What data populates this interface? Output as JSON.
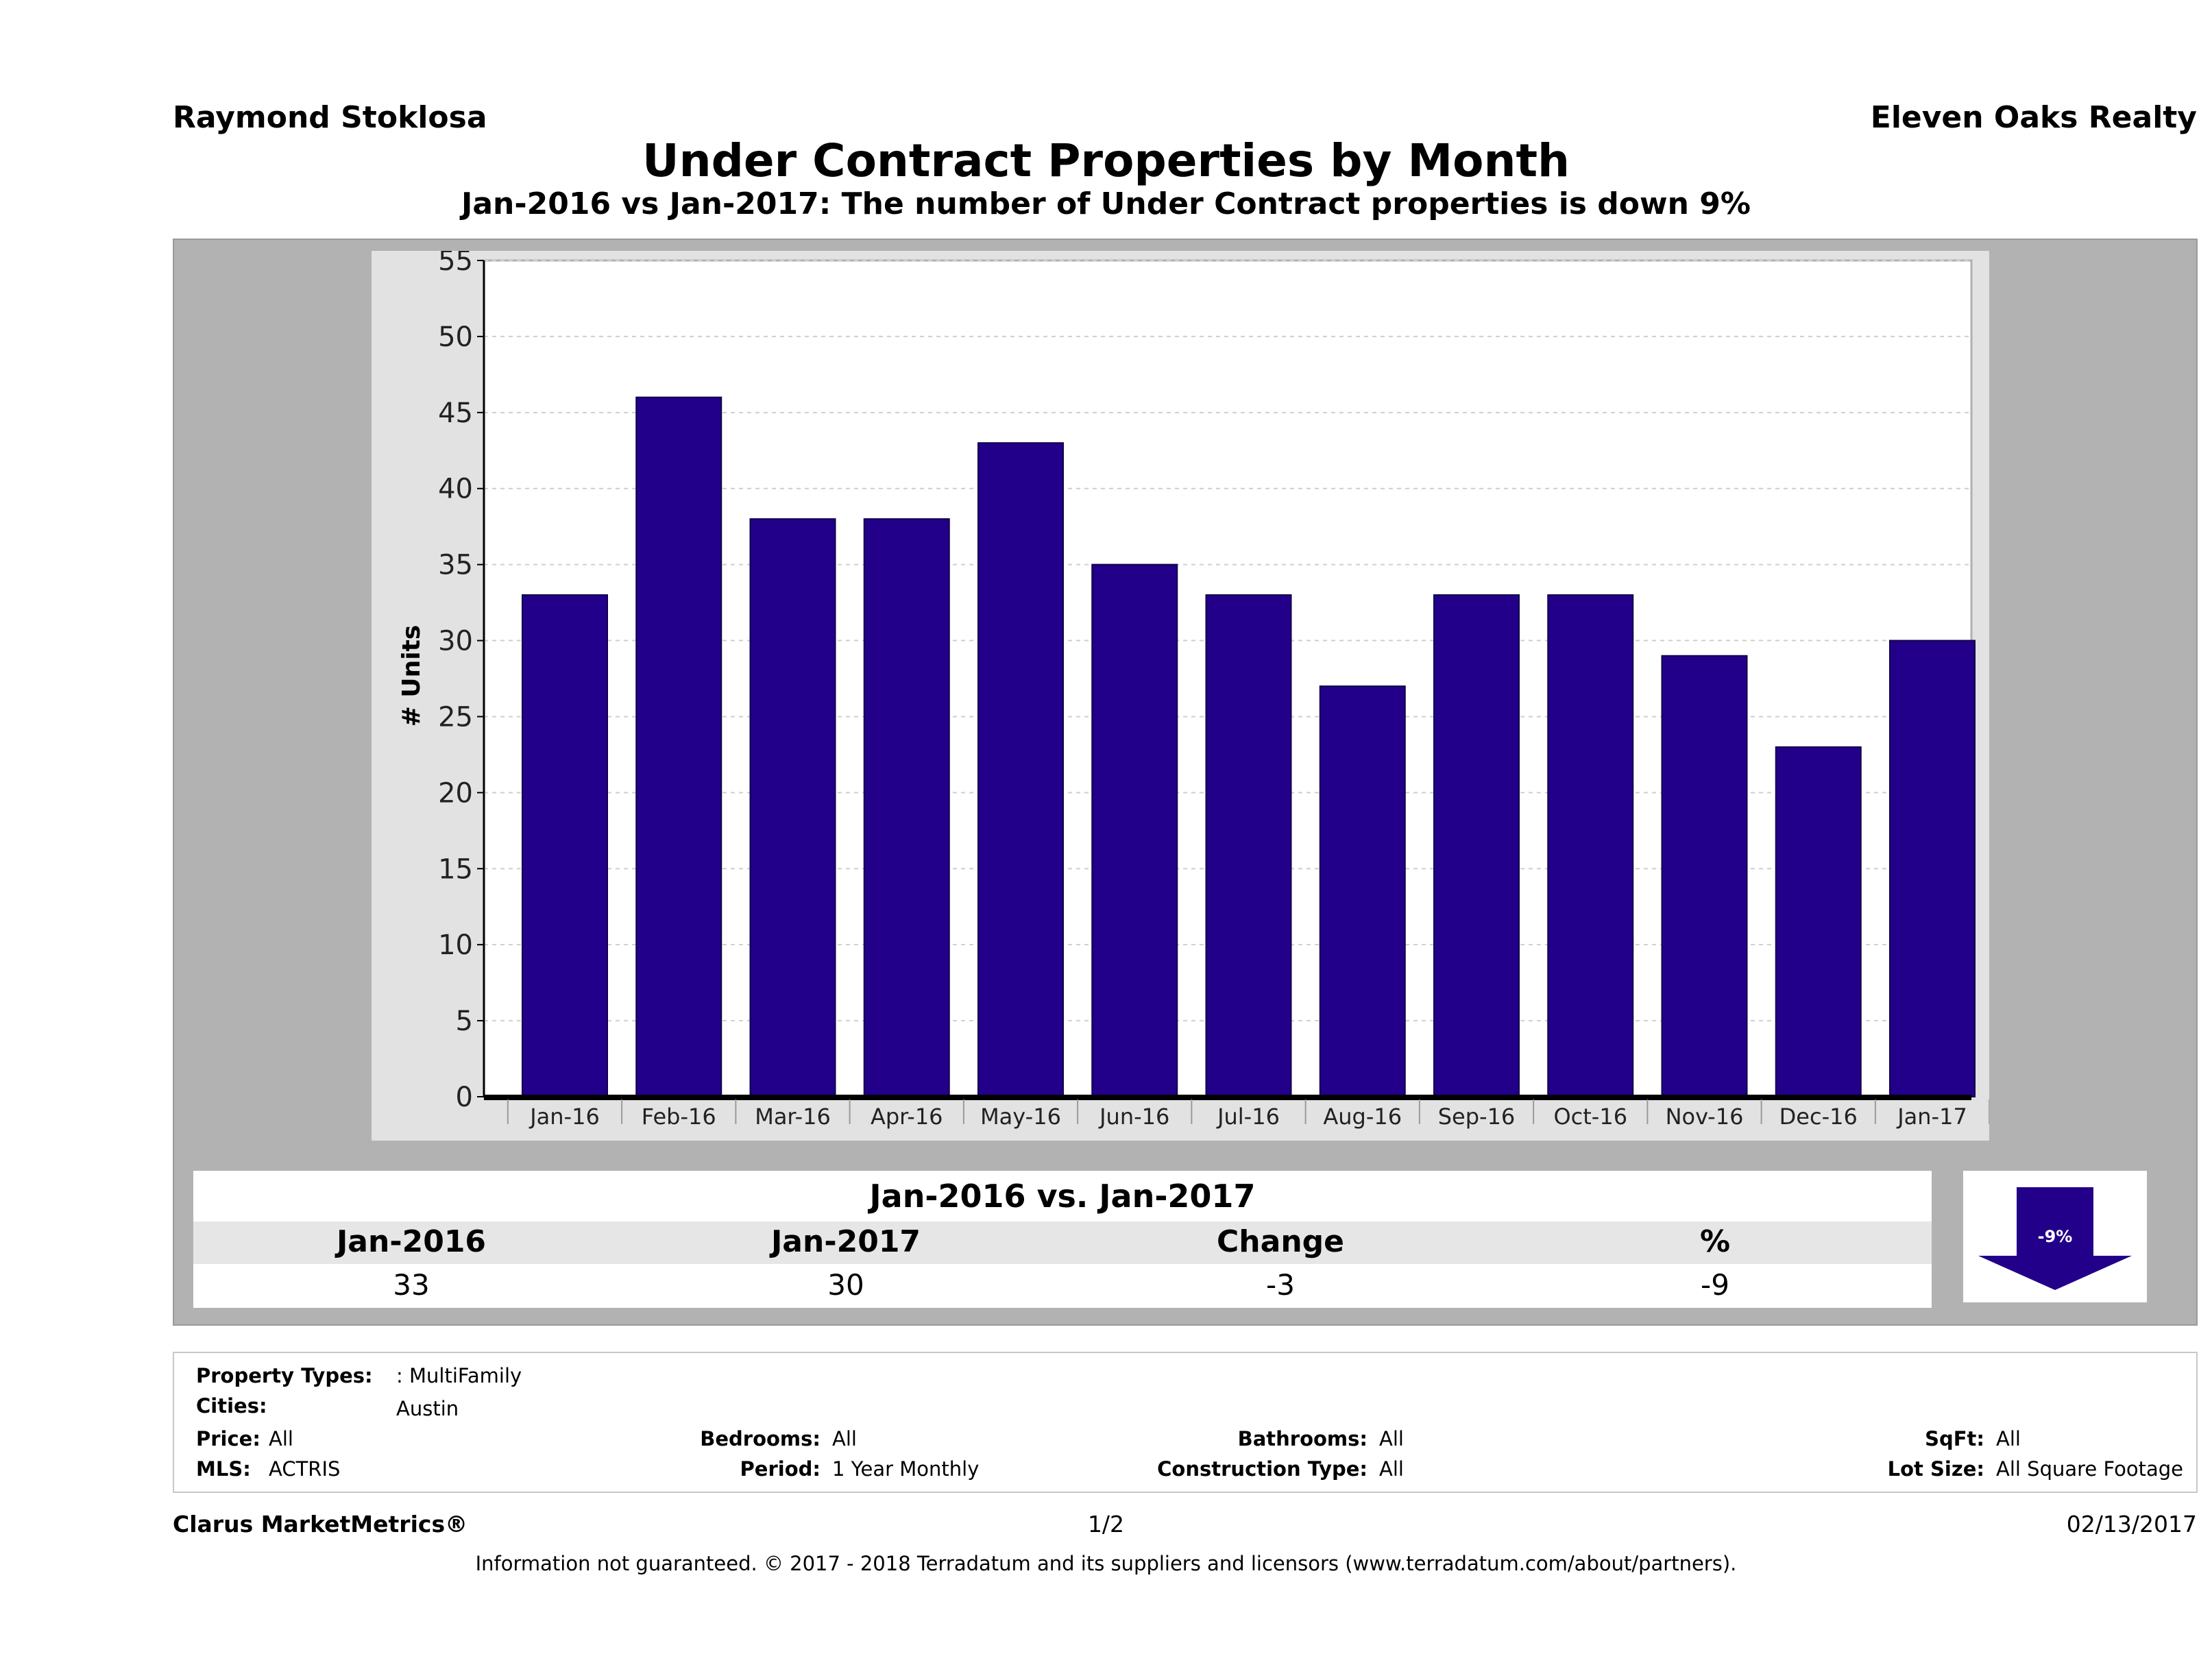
{
  "header": {
    "agent_name": "Raymond Stoklosa",
    "company_name": "Eleven Oaks Realty",
    "title": "Under Contract Properties by Month",
    "subtitle": "Jan-2016 vs Jan-2017: The number of Under Contract   properties is down 9%"
  },
  "chart_data": {
    "type": "bar",
    "title": "Under Contract Properties by Month",
    "xlabel": "",
    "ylabel": "# Units",
    "ylim": [
      0,
      55
    ],
    "yticks": [
      0,
      5,
      10,
      15,
      20,
      25,
      30,
      35,
      40,
      45,
      50,
      55
    ],
    "grid": true,
    "categories": [
      "Jan-16",
      "Feb-16",
      "Mar-16",
      "Apr-16",
      "May-16",
      "Jun-16",
      "Jul-16",
      "Aug-16",
      "Sep-16",
      "Oct-16",
      "Nov-16",
      "Dec-16",
      "Jan-17"
    ],
    "values": [
      33,
      46,
      38,
      38,
      43,
      35,
      33,
      27,
      33,
      33,
      29,
      23,
      30
    ],
    "bar_color": "#22008a"
  },
  "summary": {
    "title": "Jan-2016 vs. Jan-2017",
    "headers": [
      "Jan-2016",
      "Jan-2017",
      "Change",
      "%"
    ],
    "values": [
      "33",
      "30",
      "-3",
      "-9"
    ],
    "badge_label": "-9%",
    "badge_color": "#22008a"
  },
  "details": {
    "property_types_label": "Property Types:",
    "property_types_value": ": MultiFamily",
    "cities_label": "Cities:",
    "cities_value": "Austin",
    "price_label": "Price:",
    "price_value": "All",
    "mls_label": "MLS:",
    "mls_value": "ACTRIS",
    "bedrooms_label": "Bedrooms:",
    "bedrooms_value": "All",
    "period_label": "Period:",
    "period_value": "1 Year Monthly",
    "bathrooms_label": "Bathrooms:",
    "bathrooms_value": "All",
    "construction_label": "Construction Type:",
    "construction_value": "All",
    "sqft_label": "SqFt:",
    "sqft_value": "All",
    "lot_size_label": "Lot Size:",
    "lot_size_value": "All Square Footage"
  },
  "footer": {
    "brand": "Clarus MarketMetrics®",
    "page": "1/2",
    "date": "02/13/2017",
    "disclaimer": "Information not guaranteed. © 2017 - 2018 Terradatum and its suppliers and licensors (www.terradatum.com/about/partners)."
  }
}
